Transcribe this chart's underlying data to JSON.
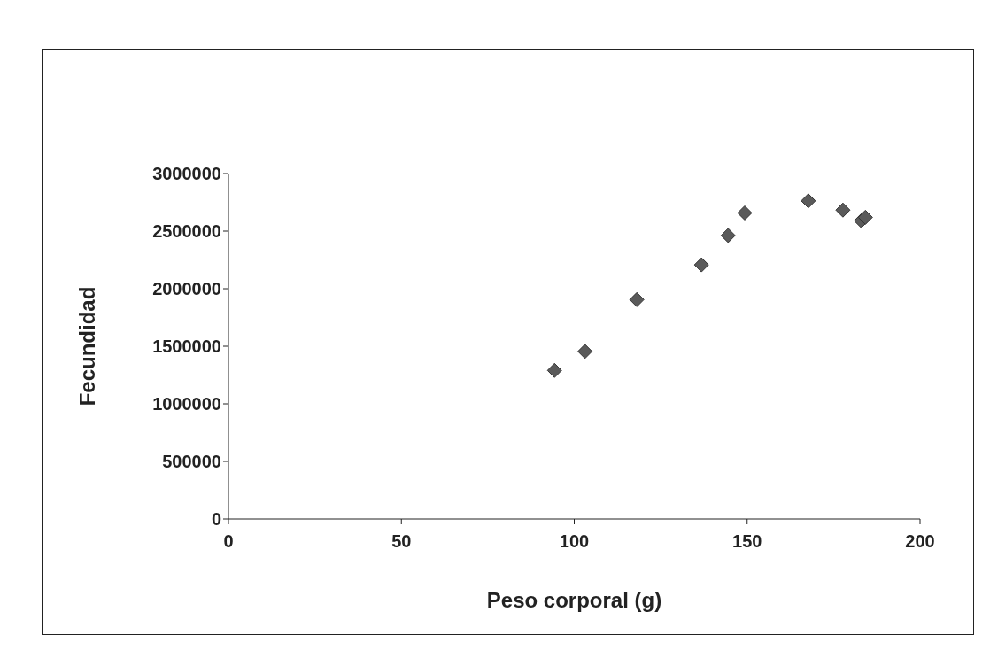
{
  "chart_data": {
    "type": "scatter",
    "xlabel": "Peso corporal (g)",
    "ylabel": "Fecundidad",
    "x": [
      94.3,
      103.1,
      118.1,
      136.8,
      144.5,
      149.3,
      167.7,
      177.7,
      183.0,
      184.2
    ],
    "values": [
      1290000,
      1455000,
      1905000,
      2207000,
      2462000,
      2658000,
      2763000,
      2683000,
      2590000,
      2620000
    ],
    "color": "#5a5a5a",
    "marker": "diamond",
    "grid": false,
    "legend": false,
    "xlim": [
      0,
      200
    ],
    "xticks": [
      0,
      50,
      100,
      150,
      200
    ],
    "ylim": [
      0,
      3000000
    ],
    "yticks": [
      0,
      500000,
      1000000,
      1500000,
      2000000,
      2500000,
      3000000
    ]
  }
}
